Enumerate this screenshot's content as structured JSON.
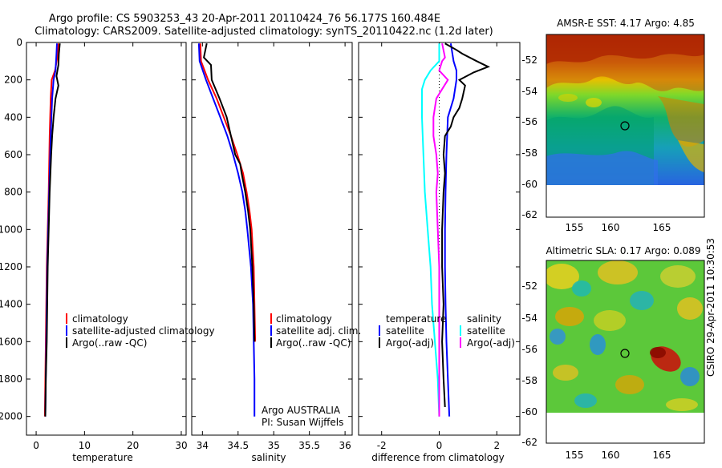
{
  "title_line1": "Argo profile: CS 5903253_43 20-Apr-2011 20110424_76 56.177S 160.484E",
  "title_line2": "Climatology: CARS2009. Satellite-adjusted climatology: synTS_20110422.nc (1.2d later)",
  "side_text": "CSIRO 29-Apr-2011 10:30:53",
  "colors": {
    "red": "#ff0000",
    "blue": "#0000ff",
    "black": "#000000",
    "cyan": "#00ffff",
    "magenta": "#ff00ff"
  },
  "chart_data": [
    {
      "type": "line",
      "xlabel": "temperature",
      "xticks": [
        "0",
        "10",
        "20",
        "30"
      ],
      "xlim": [
        -2,
        31
      ],
      "ylim": [
        0,
        2100
      ],
      "yticks": [
        "0",
        "200",
        "400",
        "600",
        "800",
        "1000",
        "1200",
        "1400",
        "1600",
        "1800",
        "2000"
      ],
      "legend": [
        "climatology",
        "satellite-adjusted climatology",
        "Argo(..raw -QC)"
      ],
      "series": [
        {
          "name": "climatology",
          "color": "#ff0000",
          "depth": [
            5,
            60,
            150,
            200,
            300,
            500,
            800,
            1000,
            1200,
            1400,
            1600,
            1800,
            2000
          ],
          "values": [
            4.6,
            4.5,
            3.9,
            3.2,
            3.0,
            2.8,
            2.6,
            2.4,
            2.2,
            2.1,
            2.0,
            1.9,
            1.8
          ]
        },
        {
          "name": "satellite-adjusted climatology",
          "color": "#0000ff",
          "depth": [
            5,
            60,
            150,
            200,
            300,
            500,
            800,
            1000,
            1200,
            1400,
            1600,
            1800,
            2000
          ],
          "values": [
            4.3,
            4.2,
            4.0,
            3.6,
            3.3,
            3.0,
            2.7,
            2.5,
            2.3,
            2.2,
            2.1,
            2.0,
            1.9
          ]
        },
        {
          "name": "Argo(..raw -QC)",
          "color": "#000000",
          "depth": [
            5,
            60,
            120,
            180,
            230,
            300,
            400,
            500,
            600,
            800,
            1000,
            1200,
            1400,
            1600,
            1800,
            2000
          ],
          "values": [
            4.9,
            4.7,
            4.6,
            4.2,
            4.6,
            4.0,
            3.6,
            3.3,
            3.1,
            2.8,
            2.6,
            2.4,
            2.3,
            2.2,
            2.0,
            1.9
          ]
        }
      ]
    },
    {
      "type": "line",
      "xlabel": "salinity",
      "xticks": [
        "34",
        "34.5",
        "35",
        "35.5",
        "36"
      ],
      "xlim": [
        33.85,
        36.1
      ],
      "ylim": [
        0,
        2100
      ],
      "legend": [
        "climatology",
        "satellite adj. clim.",
        "Argo(..raw -QC)"
      ],
      "annotation": [
        "Argo AUSTRALIA",
        "PI: Susan Wijffels"
      ],
      "series": [
        {
          "name": "climatology",
          "color": "#ff0000",
          "depth": [
            5,
            100,
            200,
            300,
            400,
            500,
            600,
            700,
            800,
            900,
            1000,
            1200,
            1400,
            1600
          ],
          "values": [
            33.97,
            33.98,
            34.08,
            34.2,
            34.3,
            34.4,
            34.49,
            34.57,
            34.62,
            34.66,
            34.69,
            34.72,
            34.73,
            34.74
          ]
        },
        {
          "name": "satellite adj. clim.",
          "color": "#0000ff",
          "depth": [
            5,
            100,
            200,
            300,
            400,
            500,
            600,
            700,
            800,
            900,
            1000,
            1200,
            1400,
            1600,
            1800,
            2000
          ],
          "values": [
            33.95,
            33.96,
            34.05,
            34.15,
            34.25,
            34.35,
            34.43,
            34.5,
            34.56,
            34.6,
            34.63,
            34.68,
            34.71,
            34.72,
            34.73,
            34.73
          ]
        },
        {
          "name": "Argo(..raw -QC)",
          "color": "#000000",
          "depth": [
            5,
            80,
            120,
            200,
            300,
            400,
            500,
            600,
            650,
            700,
            800,
            900,
            1000,
            1200,
            1400,
            1600
          ],
          "values": [
            34.06,
            34.02,
            34.12,
            34.13,
            34.24,
            34.34,
            34.4,
            34.46,
            34.53,
            34.55,
            34.6,
            34.64,
            34.67,
            34.7,
            34.72,
            34.73
          ]
        }
      ]
    },
    {
      "type": "line",
      "xlabel": "difference from climatology",
      "xticks": [
        "-2",
        "0",
        "2"
      ],
      "xlim": [
        -2.8,
        2.8
      ],
      "ylim": [
        0,
        2100
      ],
      "legend_left_title": "temperature",
      "legend_right_title": "salinity",
      "legend_left": [
        "satellite",
        "Argo(-adj)"
      ],
      "legend_right": [
        "satellite",
        "Argo(-adj)"
      ],
      "series": [
        {
          "name": "temperature satellite",
          "color": "#0000ff",
          "depth": [
            5,
            100,
            150,
            200,
            300,
            400,
            600,
            800,
            1000,
            1200,
            1400,
            1600,
            1800,
            2000
          ],
          "values": [
            0.4,
            0.5,
            0.6,
            0.6,
            0.5,
            0.3,
            0.25,
            0.22,
            0.2,
            0.2,
            0.22,
            0.25,
            0.3,
            0.35
          ]
        },
        {
          "name": "temperature Argo(-adj)",
          "color": "#000000",
          "depth": [
            5,
            40,
            60,
            100,
            130,
            160,
            200,
            230,
            300,
            350,
            400,
            450,
            500,
            600,
            700,
            800,
            1000,
            1200,
            1400,
            1600,
            1800,
            1950
          ],
          "values": [
            0.2,
            0.6,
            0.8,
            1.3,
            1.7,
            1.2,
            0.7,
            0.9,
            0.8,
            0.7,
            0.5,
            0.4,
            0.2,
            0.15,
            0.2,
            0.15,
            0.1,
            0.1,
            0.15,
            0.1,
            0.15,
            0.2
          ]
        },
        {
          "name": "salinity satellite",
          "color": "#00ffff",
          "depth": [
            5,
            100,
            150,
            200,
            250,
            400,
            600,
            800,
            1000,
            1200,
            1400,
            1600,
            1800,
            2000
          ],
          "values": [
            0.0,
            0.0,
            -0.3,
            -0.5,
            -0.6,
            -0.6,
            -0.55,
            -0.5,
            -0.4,
            -0.3,
            -0.25,
            -0.15,
            -0.05,
            0.0
          ]
        },
        {
          "name": "salinity Argo(-adj)",
          "color": "#ff00ff",
          "depth": [
            5,
            80,
            100,
            150,
            200,
            250,
            300,
            400,
            500,
            600,
            700,
            800,
            1000,
            1200,
            1400,
            1600,
            1800,
            2000
          ],
          "values": [
            0.1,
            0.2,
            0.1,
            0.0,
            0.3,
            0.1,
            -0.1,
            -0.2,
            -0.2,
            -0.1,
            -0.05,
            -0.1,
            -0.05,
            0.0,
            0.0,
            0.0,
            0.0,
            0.0
          ]
        }
      ]
    },
    {
      "type": "heatmap",
      "title": "AMSR-E SST: 4.17 Argo: 4.85",
      "xticks": [
        "155",
        "160",
        "165"
      ],
      "yticks": [
        "-52",
        "-54",
        "-56",
        "-58",
        "-60",
        "-62"
      ],
      "xlim": [
        151.5,
        169.5
      ],
      "ylim": [
        -62.6,
        -50.5
      ]
    },
    {
      "type": "heatmap",
      "title": "Altimetric SLA: 0.17 Argo: 0.089",
      "xticks": [
        "155",
        "160",
        "165"
      ],
      "yticks": [
        "-52",
        "-54",
        "-56",
        "-58",
        "-60",
        "-62"
      ],
      "xlim": [
        151.5,
        169.5
      ],
      "ylim": [
        -62.6,
        -50.5
      ]
    }
  ]
}
